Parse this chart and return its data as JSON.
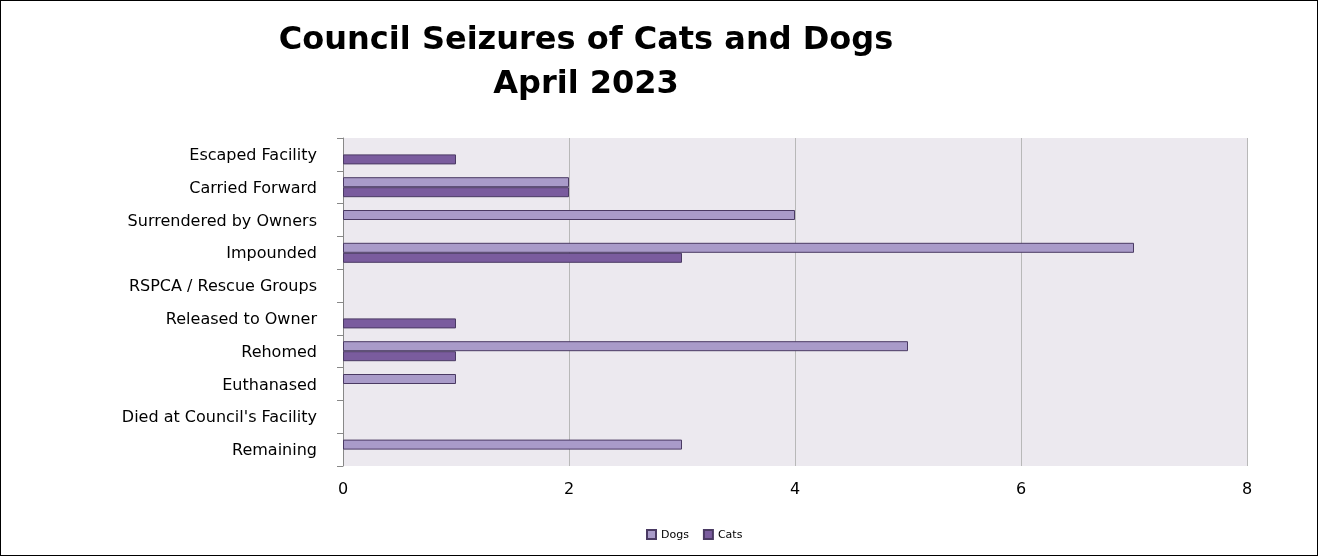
{
  "chart_data": {
    "type": "bar",
    "orientation": "horizontal",
    "title": "Council Seizures of Cats and Dogs\nApril 2023",
    "categories": [
      "Escaped Facility",
      "Carried Forward",
      "Surrendered by Owners",
      "Impounded",
      "RSPCA / Rescue Groups",
      "Released to Owner",
      "Rehomed",
      "Euthanased",
      "Died at Council's Facility",
      "Remaining"
    ],
    "series": [
      {
        "name": "Dogs",
        "color": "#a99bc9",
        "values": [
          0,
          2,
          4,
          7,
          0,
          0,
          5,
          1,
          0,
          3
        ]
      },
      {
        "name": "Cats",
        "color": "#7a5c9e",
        "values": [
          1,
          2,
          0,
          3,
          0,
          1,
          1,
          0,
          0,
          0
        ]
      }
    ],
    "xlim": [
      0,
      8
    ],
    "xticks": [
      0,
      2,
      4,
      6,
      8
    ],
    "grid": "x",
    "legend": "bottom"
  }
}
